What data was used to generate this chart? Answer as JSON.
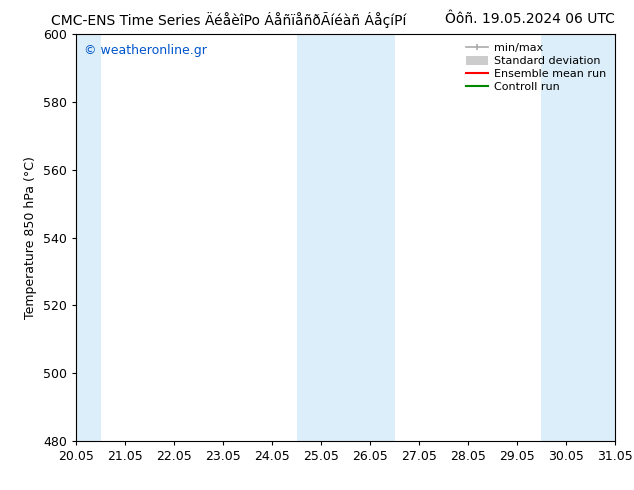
{
  "title_left": "CMC-ENS Time Series ÄéåèîPo ÁåñïåñðÃíéàñ ÁåçíPí",
  "title_right": "Ôôñ. 19.05.2024 06 UTC",
  "ylabel": "Temperature 850 hPa (°C)",
  "ylim": [
    480,
    600
  ],
  "yticks": [
    480,
    500,
    520,
    540,
    560,
    580,
    600
  ],
  "xlabel_ticks": [
    "20.05",
    "21.05",
    "22.05",
    "23.05",
    "24.05",
    "25.05",
    "26.05",
    "27.05",
    "28.05",
    "29.05",
    "30.05",
    "31.05"
  ],
  "bg_color": "#ffffff",
  "plot_bg_color": "#ffffff",
  "shaded_color": "#dceef9",
  "watermark": "© weatheronline.gr",
  "watermark_color": "#0055cc",
  "axis_color": "#000000",
  "font_size": 9,
  "title_font_size": 10,
  "legend_font_size": 8,
  "minmax_color": "#aaaaaa",
  "stddev_color": "#cccccc",
  "ensemble_color": "#ff0000",
  "control_color": "#008800"
}
